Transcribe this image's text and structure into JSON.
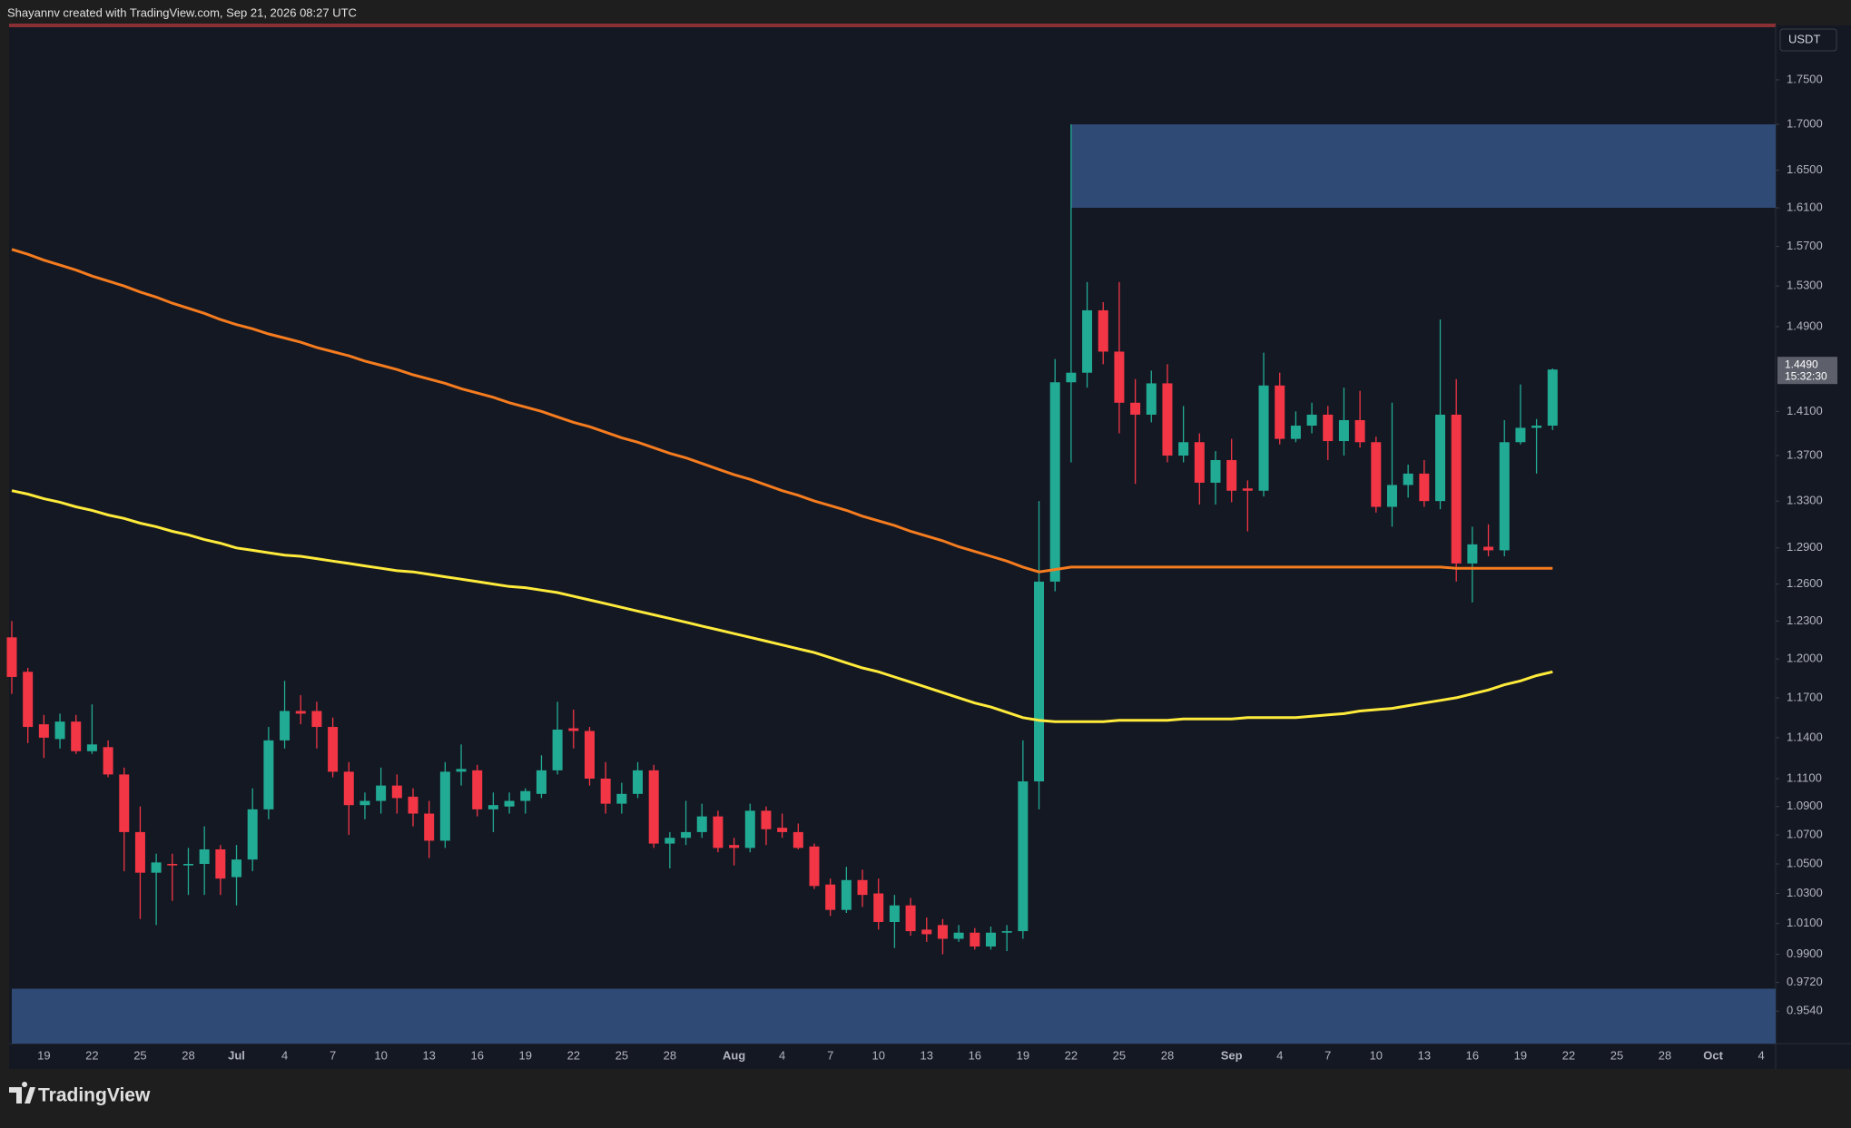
{
  "header": "Shayannv created with TradingView.com, Sep 21, 2026 08:27 UTC",
  "footer_brand": "TradingView",
  "chart_data": {
    "type": "candlestick",
    "currency": "USDT",
    "log_scale": true,
    "grid": false,
    "last_price": {
      "value": 1.449,
      "label": "1.4490"
    },
    "countdown": "15:32:30",
    "up_color": "#22ab94",
    "down_color": "#f23645",
    "ylim": [
      0.934,
      1.811
    ],
    "yticks": [
      {
        "value": 1.75,
        "label": "1.7500"
      },
      {
        "value": 1.7,
        "label": "1.7000"
      },
      {
        "value": 1.65,
        "label": "1.6500"
      },
      {
        "value": 1.61,
        "label": "1.6100"
      },
      {
        "value": 1.57,
        "label": "1.5700"
      },
      {
        "value": 1.53,
        "label": "1.5300"
      },
      {
        "value": 1.49,
        "label": "1.4900"
      },
      {
        "value": 1.41,
        "label": "1.4100"
      },
      {
        "value": 1.37,
        "label": "1.3700"
      },
      {
        "value": 1.33,
        "label": "1.3300"
      },
      {
        "value": 1.29,
        "label": "1.2900"
      },
      {
        "value": 1.26,
        "label": "1.2600"
      },
      {
        "value": 1.23,
        "label": "1.2300"
      },
      {
        "value": 1.2,
        "label": "1.2000"
      },
      {
        "value": 1.17,
        "label": "1.1700"
      },
      {
        "value": 1.14,
        "label": "1.1400"
      },
      {
        "value": 1.11,
        "label": "1.1100"
      },
      {
        "value": 1.09,
        "label": "1.0900"
      },
      {
        "value": 1.07,
        "label": "1.0700"
      },
      {
        "value": 1.05,
        "label": "1.0500"
      },
      {
        "value": 1.03,
        "label": "1.0300"
      },
      {
        "value": 1.01,
        "label": "1.0100"
      },
      {
        "value": 0.99,
        "label": "0.9900"
      },
      {
        "value": 0.972,
        "label": "0.9720"
      },
      {
        "value": 0.954,
        "label": "0.9540"
      }
    ],
    "categories": [
      null,
      null,
      "19",
      null,
      null,
      "22",
      null,
      null,
      "25",
      null,
      null,
      "28",
      null,
      null,
      "Jul",
      null,
      null,
      "4",
      null,
      null,
      "7",
      null,
      null,
      "10",
      null,
      null,
      "13",
      null,
      null,
      "16",
      null,
      null,
      "19",
      null,
      null,
      "22",
      null,
      null,
      "25",
      null,
      null,
      "28",
      null,
      null,
      null,
      "Aug",
      null,
      null,
      "4",
      null,
      null,
      "7",
      null,
      null,
      "10",
      null,
      null,
      "13",
      null,
      null,
      "16",
      null,
      null,
      "19",
      null,
      null,
      "22",
      null,
      null,
      "25",
      null,
      null,
      "28",
      null,
      null,
      null,
      "Sep",
      null,
      null,
      "4",
      null,
      null,
      "7",
      null,
      null,
      "10",
      null,
      null,
      "13",
      null,
      null,
      "16",
      null,
      null,
      "19",
      null,
      null,
      "22",
      null,
      null,
      "25",
      null,
      null,
      "28",
      null,
      null,
      "Oct",
      null,
      null,
      "4"
    ],
    "open": [
      1.217,
      1.19,
      1.15,
      1.139,
      1.152,
      1.13,
      1.133,
      1.113,
      1.072,
      1.044,
      1.05,
      1.049,
      1.05,
      1.06,
      1.041,
      1.053,
      1.088,
      1.138,
      1.16,
      1.16,
      1.148,
      1.115,
      1.091,
      1.094,
      1.105,
      1.097,
      1.085,
      1.066,
      1.115,
      1.116,
      1.088,
      1.09,
      1.094,
      1.099,
      1.116,
      1.147,
      1.145,
      1.11,
      1.092,
      1.099,
      1.116,
      1.064,
      1.068,
      1.072,
      1.083,
      1.063,
      1.061,
      1.087,
      1.075,
      1.072,
      1.062,
      1.036,
      1.019,
      1.039,
      1.03,
      1.011,
      1.022,
      1.006,
      1.009,
      1.0,
      1.004,
      0.995,
      1.004,
      1.005,
      1.108,
      1.262,
      1.437,
      1.446,
      1.506,
      1.466,
      1.418,
      1.407,
      1.436,
      1.37,
      1.382,
      1.346,
      1.366,
      1.341,
      1.339,
      1.434,
      1.385,
      1.397,
      1.407,
      1.383,
      1.402,
      1.382,
      1.325,
      1.344,
      1.354,
      1.33,
      1.407,
      1.277,
      1.291,
      1.288,
      1.382,
      1.395,
      1.397,
      null,
      null,
      null,
      null,
      null,
      null,
      null,
      null,
      null,
      null,
      null,
      null,
      null
    ],
    "high": [
      1.23,
      1.193,
      1.157,
      1.158,
      1.157,
      1.165,
      1.138,
      1.118,
      1.09,
      1.057,
      1.057,
      1.061,
      1.076,
      1.063,
      1.063,
      1.103,
      1.148,
      1.183,
      1.172,
      1.167,
      1.155,
      1.122,
      1.1,
      1.118,
      1.113,
      1.103,
      1.094,
      1.122,
      1.135,
      1.12,
      1.1,
      1.1,
      1.103,
      1.127,
      1.167,
      1.161,
      1.148,
      1.122,
      1.107,
      1.122,
      1.12,
      1.072,
      1.094,
      1.092,
      1.087,
      1.068,
      1.092,
      1.09,
      1.085,
      1.078,
      1.064,
      1.04,
      1.048,
      1.046,
      1.04,
      1.029,
      1.027,
      1.014,
      1.013,
      1.009,
      1.007,
      1.008,
      1.009,
      1.138,
      1.33,
      1.459,
      1.7,
      1.534,
      1.514,
      1.534,
      1.44,
      1.448,
      1.454,
      1.415,
      1.39,
      1.374,
      1.385,
      1.348,
      1.465,
      1.446,
      1.41,
      1.418,
      1.415,
      1.432,
      1.429,
      1.387,
      1.418,
      1.362,
      1.366,
      1.497,
      1.44,
      1.308,
      1.31,
      1.402,
      1.435,
      1.403,
      1.45,
      null,
      null,
      null,
      null,
      null,
      null,
      null,
      null,
      null,
      null,
      null,
      null,
      null
    ],
    "low": [
      1.173,
      1.136,
      1.125,
      1.132,
      1.128,
      1.128,
      1.111,
      1.045,
      1.013,
      1.009,
      1.025,
      1.029,
      1.029,
      1.029,
      1.022,
      1.045,
      1.081,
      1.132,
      1.15,
      1.132,
      1.111,
      1.07,
      1.081,
      1.085,
      1.085,
      1.076,
      1.054,
      1.061,
      1.105,
      1.083,
      1.072,
      1.085,
      1.085,
      1.096,
      1.113,
      1.132,
      1.105,
      1.085,
      1.085,
      1.096,
      1.061,
      1.047,
      1.063,
      1.068,
      1.058,
      1.049,
      1.058,
      1.063,
      1.068,
      1.06,
      1.033,
      1.015,
      1.017,
      1.021,
      1.006,
      0.994,
      1.002,
      0.998,
      0.99,
      0.998,
      0.993,
      0.993,
      0.992,
      1.0,
      1.088,
      1.254,
      1.364,
      1.432,
      1.454,
      1.39,
      1.345,
      1.4,
      1.364,
      1.364,
      1.327,
      1.327,
      1.329,
      1.304,
      1.334,
      1.38,
      1.382,
      1.39,
      1.366,
      1.37,
      1.377,
      1.32,
      1.308,
      1.333,
      1.325,
      1.323,
      1.262,
      1.245,
      1.283,
      1.283,
      1.38,
      1.354,
      1.393,
      null,
      null,
      null,
      null,
      null,
      null,
      null,
      null,
      null,
      null,
      null,
      null,
      null
    ],
    "close": [
      1.186,
      1.148,
      1.14,
      1.152,
      1.13,
      1.135,
      1.113,
      1.072,
      1.044,
      1.051,
      1.049,
      1.05,
      1.06,
      1.04,
      1.053,
      1.088,
      1.138,
      1.16,
      1.158,
      1.148,
      1.115,
      1.091,
      1.094,
      1.105,
      1.096,
      1.085,
      1.066,
      1.115,
      1.117,
      1.088,
      1.091,
      1.094,
      1.101,
      1.116,
      1.146,
      1.145,
      1.11,
      1.092,
      1.099,
      1.116,
      1.064,
      1.068,
      1.072,
      1.083,
      1.061,
      1.061,
      1.087,
      1.074,
      1.072,
      1.061,
      1.035,
      1.019,
      1.039,
      1.029,
      1.011,
      1.022,
      1.005,
      1.003,
      1.0,
      1.004,
      0.995,
      1.004,
      1.005,
      1.108,
      1.262,
      1.437,
      1.446,
      1.506,
      1.466,
      1.418,
      1.407,
      1.436,
      1.37,
      1.382,
      1.346,
      1.366,
      1.339,
      1.339,
      1.434,
      1.385,
      1.397,
      1.407,
      1.383,
      1.402,
      1.382,
      1.325,
      1.344,
      1.354,
      1.33,
      1.407,
      1.277,
      1.293,
      1.288,
      1.382,
      1.395,
      1.397,
      1.449,
      null,
      null,
      null,
      null,
      null,
      null,
      null,
      null,
      null,
      null,
      null,
      null,
      null
    ],
    "series": [
      {
        "color": "#f57c1f",
        "values": [
          1.567,
          1.562,
          1.556,
          1.551,
          1.546,
          1.54,
          1.535,
          1.53,
          1.524,
          1.519,
          1.513,
          1.508,
          1.503,
          1.497,
          1.492,
          1.488,
          1.483,
          1.479,
          1.475,
          1.47,
          1.466,
          1.462,
          1.457,
          1.453,
          1.449,
          1.444,
          1.44,
          1.436,
          1.431,
          1.427,
          1.423,
          1.418,
          1.414,
          1.41,
          1.405,
          1.4,
          1.396,
          1.391,
          1.386,
          1.382,
          1.377,
          1.372,
          1.368,
          1.363,
          1.358,
          1.353,
          1.349,
          1.344,
          1.339,
          1.335,
          1.33,
          1.326,
          1.322,
          1.317,
          1.313,
          1.309,
          1.304,
          1.3,
          1.296,
          1.291,
          1.287,
          1.283,
          1.279,
          1.274,
          1.27,
          1.272,
          1.274,
          1.274,
          1.274,
          1.274,
          1.274,
          1.274,
          1.274,
          1.274,
          1.274,
          1.274,
          1.274,
          1.274,
          1.274,
          1.274,
          1.274,
          1.274,
          1.274,
          1.274,
          1.274,
          1.274,
          1.274,
          1.274,
          1.274,
          1.274,
          1.273,
          1.273,
          1.273,
          1.273,
          1.273,
          1.273,
          1.273,
          null,
          null,
          null,
          null,
          null,
          null,
          null,
          null,
          null,
          null,
          null,
          null,
          null
        ]
      },
      {
        "color": "#ffeb3b",
        "values": [
          1.339,
          1.336,
          1.332,
          1.329,
          1.325,
          1.322,
          1.318,
          1.315,
          1.311,
          1.308,
          1.304,
          1.301,
          1.297,
          1.294,
          1.29,
          1.288,
          1.286,
          1.284,
          1.283,
          1.281,
          1.279,
          1.277,
          1.275,
          1.273,
          1.271,
          1.27,
          1.268,
          1.266,
          1.264,
          1.262,
          1.26,
          1.258,
          1.257,
          1.255,
          1.253,
          1.25,
          1.247,
          1.244,
          1.241,
          1.238,
          1.235,
          1.232,
          1.229,
          1.226,
          1.223,
          1.22,
          1.217,
          1.214,
          1.211,
          1.208,
          1.205,
          1.201,
          1.197,
          1.193,
          1.19,
          1.186,
          1.182,
          1.178,
          1.174,
          1.17,
          1.166,
          1.163,
          1.159,
          1.155,
          1.153,
          1.152,
          1.152,
          1.152,
          1.152,
          1.153,
          1.153,
          1.153,
          1.153,
          1.154,
          1.154,
          1.154,
          1.154,
          1.155,
          1.155,
          1.155,
          1.155,
          1.156,
          1.157,
          1.158,
          1.16,
          1.161,
          1.162,
          1.164,
          1.166,
          1.168,
          1.17,
          1.173,
          1.176,
          1.18,
          1.183,
          1.187,
          1.19,
          null,
          null,
          null,
          null,
          null,
          null,
          null,
          null,
          null,
          null,
          null,
          null,
          null
        ]
      }
    ],
    "zones": [
      {
        "start": 66,
        "range": [
          1.61,
          1.7
        ],
        "color": "#2e4a75"
      },
      {
        "start": 0,
        "range": [
          0.934,
          0.968
        ],
        "color": "#2e4a75"
      }
    ]
  }
}
